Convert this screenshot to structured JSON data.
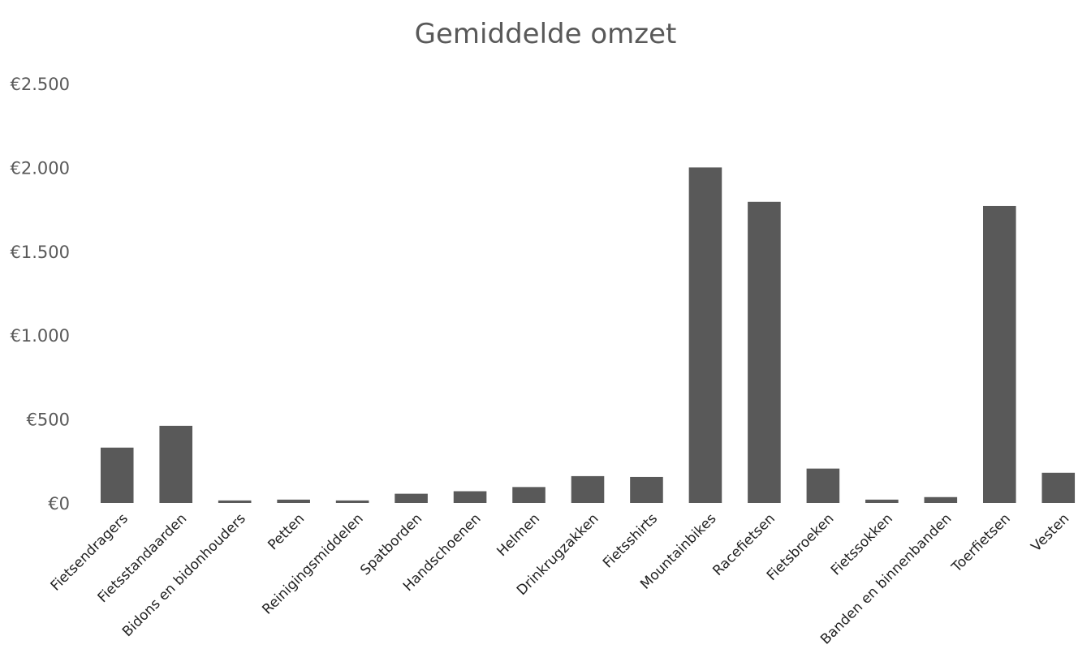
{
  "chart_data": {
    "type": "bar",
    "title": "Gemiddelde omzet",
    "xlabel": "",
    "ylabel": "",
    "ylim": [
      0,
      2500
    ],
    "yticks": [
      0,
      500,
      1000,
      1500,
      2000,
      2500
    ],
    "ytick_labels": [
      "€0",
      "€500",
      "€1.000",
      "€1.500",
      "€2.000",
      "€2.500"
    ],
    "grid": false,
    "legend": "none",
    "bar_color": "#595959",
    "categories": [
      "Fietsendragers",
      "Fietsstandaarden",
      "Bidons en bidonhouders",
      "Petten",
      "Reinigingsmiddelen",
      "Spatborden",
      "Handschoenen",
      "Helmen",
      "Drinkrugzakken",
      "Fietsshirts",
      "Mountainbikes",
      "Racefietsen",
      "Fietsbroeken",
      "Fietssokken",
      "Banden en binnenbanden",
      "Toerfietsen",
      "Vesten"
    ],
    "values": [
      330,
      460,
      15,
      20,
      15,
      55,
      70,
      95,
      160,
      155,
      2000,
      1795,
      205,
      20,
      35,
      1770,
      180
    ]
  }
}
